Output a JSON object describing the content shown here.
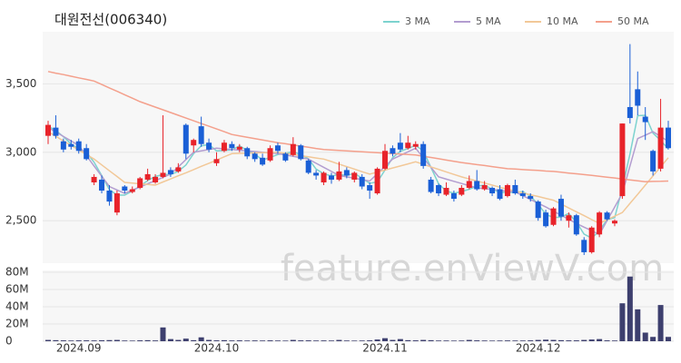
{
  "watermark": "feature.enViewV.com",
  "chart_data": [
    {
      "type": "candlestick",
      "title": "대원전선(006340)",
      "up_color": "#e8232a",
      "down_color": "#1a5fd6",
      "legend": "top-right",
      "grid": true,
      "ylim": [
        2190,
        3880
      ],
      "yticks": [
        {
          "value": 2500,
          "label": "2,500"
        },
        {
          "value": 3000,
          "label": "3,000"
        },
        {
          "value": 3500,
          "label": "3,500"
        }
      ],
      "open": [
        3120,
        3180,
        3080,
        3060,
        3080,
        3030,
        2780,
        2800,
        2720,
        2560,
        2750,
        2710,
        2740,
        2800,
        2780,
        2820,
        2870,
        2860,
        3200,
        3050,
        3190,
        3070,
        2920,
        3010,
        3060,
        3020,
        3030,
        2990,
        2960,
        2940,
        3050,
        2990,
        2980,
        3050,
        2940,
        2850,
        2780,
        2830,
        2800,
        2870,
        2800,
        2820,
        2760,
        2700,
        2880,
        3030,
        3070,
        3030,
        3040,
        3060,
        2800,
        2760,
        2690,
        2700,
        2690,
        2740,
        2790,
        2730,
        2740,
        2730,
        2680,
        2760,
        2700,
        2680,
        2640,
        2560,
        2470,
        2660,
        2500,
        2540,
        2360,
        2270,
        2400,
        2560,
        2480,
        2680,
        3330,
        3460,
        3260,
        3010,
        2880,
        3180
      ],
      "high": [
        3230,
        3270,
        3100,
        3090,
        3100,
        3060,
        2840,
        2830,
        2760,
        2720,
        2760,
        2750,
        2820,
        2880,
        2840,
        3270,
        2890,
        2920,
        3210,
        3100,
        3260,
        3100,
        3000,
        3090,
        3080,
        3060,
        3040,
        3000,
        2990,
        3050,
        3070,
        3000,
        3110,
        3060,
        2950,
        2870,
        2860,
        2850,
        2930,
        2890,
        2860,
        2840,
        2780,
        2890,
        3060,
        3050,
        3140,
        3120,
        3080,
        3080,
        2820,
        2770,
        2780,
        2720,
        2760,
        2830,
        2870,
        2790,
        2750,
        2760,
        2770,
        2800,
        2720,
        2700,
        2650,
        2580,
        2600,
        2690,
        2560,
        2550,
        2380,
        2460,
        2570,
        2570,
        2510,
        3210,
        3790,
        3590,
        3330,
        3020,
        3390,
        3230
      ],
      "low": [
        3060,
        3100,
        3000,
        3020,
        2990,
        2940,
        2760,
        2700,
        2610,
        2540,
        2700,
        2700,
        2730,
        2790,
        2770,
        2810,
        2820,
        2850,
        2950,
        3000,
        3040,
        3000,
        2900,
        3000,
        3010,
        3000,
        2950,
        2930,
        2900,
        2930,
        2990,
        2930,
        2970,
        2940,
        2840,
        2800,
        2760,
        2770,
        2790,
        2810,
        2780,
        2730,
        2660,
        2690,
        2870,
        2970,
        3000,
        3020,
        3020,
        2880,
        2700,
        2680,
        2680,
        2640,
        2680,
        2730,
        2720,
        2720,
        2680,
        2650,
        2670,
        2690,
        2660,
        2640,
        2500,
        2450,
        2460,
        2500,
        2450,
        2390,
        2250,
        2260,
        2380,
        2500,
        2460,
        2660,
        3210,
        3270,
        3090,
        2830,
        2860,
        3020
      ],
      "close": [
        3200,
        3120,
        3020,
        3040,
        3010,
        2950,
        2820,
        2720,
        2640,
        2700,
        2720,
        2730,
        2810,
        2840,
        2820,
        2850,
        2840,
        2890,
        2990,
        3090,
        3060,
        3020,
        2950,
        3070,
        3030,
        3040,
        2970,
        2950,
        2910,
        3030,
        3010,
        2940,
        3060,
        2950,
        2850,
        2830,
        2850,
        2800,
        2860,
        2830,
        2850,
        2750,
        2720,
        2880,
        3010,
        2990,
        3020,
        3070,
        3060,
        2900,
        2710,
        2700,
        2740,
        2660,
        2740,
        2790,
        2730,
        2760,
        2700,
        2660,
        2760,
        2700,
        2680,
        2660,
        2520,
        2460,
        2590,
        2530,
        2540,
        2400,
        2270,
        2450,
        2560,
        2510,
        2500,
        3210,
        3250,
        3340,
        3220,
        2860,
        3180,
        3030
      ],
      "series": [
        {
          "name": "3 MA",
          "color": "#7dd3cf",
          "values": [
            3190,
            3160,
            3113,
            3060,
            3023,
            3000,
            2927,
            2830,
            2727,
            2687,
            2687,
            2717,
            2753,
            2793,
            2823,
            2837,
            2837,
            2860,
            2907,
            2990,
            3047,
            3057,
            3010,
            3013,
            3017,
            3047,
            3013,
            2987,
            2943,
            2963,
            2983,
            2993,
            3003,
            2983,
            2953,
            2877,
            2843,
            2827,
            2837,
            2830,
            2847,
            2810,
            2773,
            2783,
            2870,
            2960,
            3007,
            3027,
            3050,
            3010,
            2890,
            2770,
            2717,
            2700,
            2713,
            2730,
            2753,
            2760,
            2730,
            2707,
            2707,
            2707,
            2713,
            2680,
            2620,
            2547,
            2523,
            2527,
            2553,
            2490,
            2403,
            2373,
            2427,
            2507,
            2523,
            2740,
            2987,
            3267,
            3270,
            3140,
            3087,
            3023
          ]
        },
        {
          "name": "5 MA",
          "color": "#b39dd0",
          "values": [
            3180,
            3148,
            3115,
            3083,
            3050,
            2975,
            2900,
            2825,
            2750,
            2725,
            2700,
            2723,
            2747,
            2770,
            2793,
            2817,
            2840,
            2893,
            2947,
            3000,
            3010,
            3020,
            3030,
            3025,
            3020,
            3015,
            3010,
            3005,
            3000,
            2995,
            2990,
            2980,
            2970,
            2960,
            2950,
            2920,
            2890,
            2860,
            2830,
            2820,
            2810,
            2800,
            2790,
            2843,
            2897,
            2950,
            2977,
            3003,
            3030,
            2960,
            2890,
            2820,
            2804,
            2788,
            2772,
            2756,
            2740,
            2734,
            2728,
            2722,
            2716,
            2710,
            2683,
            2655,
            2628,
            2600,
            2570,
            2540,
            2510,
            2480,
            2453,
            2427,
            2400,
            2500,
            2600,
            2700,
            2900,
            3100,
            3125,
            3150,
            3115,
            3080
          ]
        },
        {
          "name": "10 MA",
          "color": "#f2c898",
          "values": [
            3150,
            3117,
            3083,
            3050,
            3017,
            2983,
            2950,
            2908,
            2865,
            2823,
            2780,
            2775,
            2770,
            2765,
            2760,
            2783,
            2805,
            2828,
            2850,
            2873,
            2897,
            2920,
            2943,
            2967,
            2990,
            2992,
            2993,
            2995,
            2997,
            2998,
            3000,
            2992,
            2983,
            2975,
            2967,
            2958,
            2950,
            2932,
            2913,
            2895,
            2877,
            2858,
            2840,
            2855,
            2870,
            2885,
            2900,
            2915,
            2930,
            2912,
            2893,
            2875,
            2857,
            2838,
            2820,
            2805,
            2790,
            2775,
            2760,
            2745,
            2730,
            2717,
            2703,
            2690,
            2677,
            2663,
            2650,
            2622,
            2593,
            2565,
            2537,
            2508,
            2480,
            2507,
            2533,
            2560,
            2627,
            2693,
            2760,
            2827,
            2893,
            2960
          ]
        },
        {
          "name": "50 MA",
          "color": "#f4a08c",
          "values": [
            3590,
            3578,
            3567,
            3555,
            3543,
            3532,
            3520,
            3495,
            3470,
            3445,
            3420,
            3395,
            3370,
            3350,
            3330,
            3310,
            3290,
            3270,
            3250,
            3230,
            3210,
            3190,
            3170,
            3150,
            3130,
            3120,
            3110,
            3100,
            3090,
            3080,
            3070,
            3062,
            3053,
            3045,
            3037,
            3028,
            3020,
            3017,
            3013,
            3010,
            3007,
            3003,
            3000,
            2997,
            2993,
            2990,
            2987,
            2983,
            2980,
            2971,
            2962,
            2953,
            2943,
            2934,
            2925,
            2918,
            2910,
            2903,
            2895,
            2888,
            2880,
            2877,
            2873,
            2870,
            2867,
            2863,
            2860,
            2854,
            2848,
            2843,
            2837,
            2831,
            2825,
            2818,
            2812,
            2805,
            2798,
            2792,
            2785,
            2787,
            2788,
            2790
          ]
        }
      ]
    },
    {
      "type": "bar",
      "color": "#3d3f6e",
      "grid": true,
      "ylim": [
        0,
        80000000
      ],
      "yticks": [
        {
          "value": 0,
          "label": "0"
        },
        {
          "value": 20000000,
          "label": "20M"
        },
        {
          "value": 40000000,
          "label": "40M"
        },
        {
          "value": 60000000,
          "label": "60M"
        },
        {
          "value": 80000000,
          "label": "80M"
        }
      ],
      "categories": [
        null,
        null,
        null,
        null,
        "2024.09",
        null,
        null,
        null,
        null,
        null,
        null,
        null,
        null,
        null,
        null,
        null,
        null,
        null,
        null,
        null,
        null,
        null,
        "2024.10",
        null,
        null,
        null,
        null,
        null,
        null,
        null,
        null,
        null,
        null,
        null,
        null,
        null,
        null,
        null,
        null,
        null,
        null,
        null,
        null,
        null,
        "2024.11",
        null,
        null,
        null,
        null,
        null,
        null,
        null,
        null,
        null,
        null,
        null,
        null,
        null,
        null,
        null,
        null,
        null,
        null,
        null,
        "2024.12",
        null,
        null,
        null,
        null,
        null,
        null,
        null,
        null,
        null,
        null,
        null,
        null,
        null,
        null,
        null,
        null,
        null
      ],
      "values": [
        1500000,
        1200000,
        1000000,
        800000,
        1000000,
        1000000,
        900000,
        1100000,
        1300000,
        1500000,
        800000,
        700000,
        1000000,
        1200000,
        900000,
        16000000,
        2500000,
        1500000,
        3000000,
        1200000,
        4500000,
        1500000,
        1000000,
        1200000,
        900000,
        1000000,
        800000,
        900000,
        800000,
        1000000,
        800000,
        700000,
        1500000,
        1000000,
        1000000,
        800000,
        900000,
        800000,
        1500000,
        800000,
        700000,
        800000,
        1000000,
        2000000,
        3500000,
        1500000,
        2500000,
        1200000,
        1000000,
        1500000,
        1200000,
        800000,
        800000,
        700000,
        800000,
        1500000,
        1000000,
        800000,
        700000,
        800000,
        900000,
        800000,
        800000,
        1000000,
        1500000,
        1800000,
        1500000,
        1200000,
        1000000,
        1000000,
        1500000,
        2000000,
        2500000,
        1000000,
        800000,
        44000000,
        75000000,
        37000000,
        10000000,
        5000000,
        42000000,
        5000000
      ]
    }
  ]
}
